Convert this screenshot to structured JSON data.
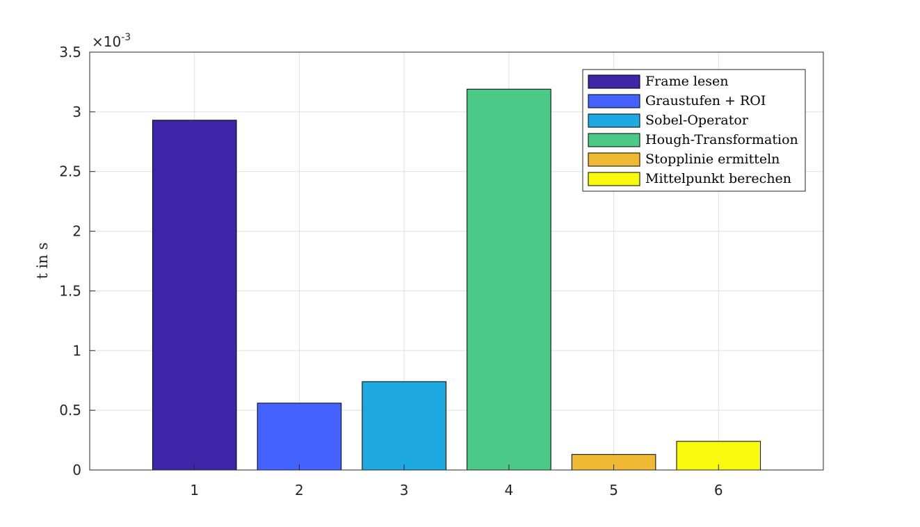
{
  "chart_data": {
    "type": "bar",
    "categories": [
      "1",
      "2",
      "3",
      "4",
      "5",
      "6"
    ],
    "values": [
      0.00293,
      0.00056,
      0.00074,
      0.00319,
      0.00013,
      0.00024
    ],
    "colors": [
      "#3e26a8",
      "#4462fd",
      "#1ea9e0",
      "#4ac987",
      "#efb934",
      "#f8fa0e"
    ],
    "ylabel": "t in s",
    "ylim": [
      0,
      0.0035
    ],
    "yticks": [
      0,
      0.5,
      1,
      1.5,
      2,
      2.5,
      3,
      3.5
    ],
    "ytick_labels": [
      "0",
      "0.5",
      "1",
      "1.5",
      "2",
      "2.5",
      "3",
      "3.5"
    ],
    "y_multiplier": "×10",
    "y_multiplier_exponent": "-3",
    "grid": true,
    "legend_position": "top-right",
    "legend": [
      "Frame lesen",
      "Graustufen + ROI",
      "Sobel-Operator",
      "Hough-Transformation",
      "Stopplinie ermitteln",
      "Mittelpunkt berechen"
    ]
  }
}
